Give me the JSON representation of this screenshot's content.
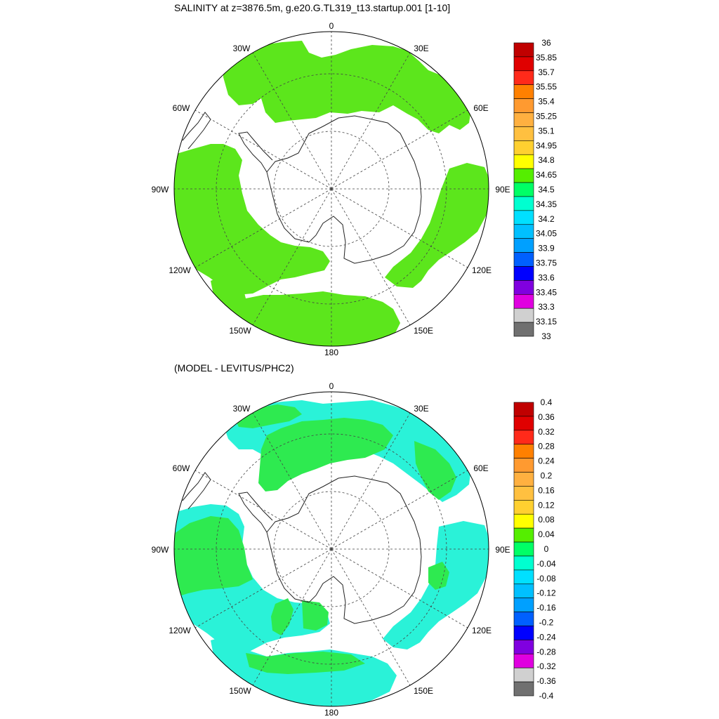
{
  "chart_data": [
    {
      "type": "polar-map",
      "title": "SALINITY at z=3876.5m, g.e20.G.TL319_t13.startup.001 [1-10]",
      "projection": "south-polar-stereographic",
      "lon_labels": [
        "0",
        "30E",
        "60E",
        "90E",
        "120E",
        "150E",
        "180",
        "150W",
        "120W",
        "90W",
        "60W",
        "30W"
      ],
      "colorbar": {
        "levels": [
          "36",
          "35.85",
          "35.7",
          "35.55",
          "35.4",
          "35.25",
          "35.1",
          "34.95",
          "34.8",
          "34.65",
          "34.5",
          "34.35",
          "34.2",
          "34.05",
          "33.9",
          "33.75",
          "33.6",
          "33.45",
          "33.3",
          "33.15",
          "33"
        ],
        "colors": [
          "#c00000",
          "#e00000",
          "#ff2a1a",
          "#ff8000",
          "#ff9a30",
          "#ffb040",
          "#ffc040",
          "#ffd030",
          "#ffff00",
          "#55ee00",
          "#00ff66",
          "#00ffd0",
          "#00e0ff",
          "#00c0ff",
          "#00a0ff",
          "#0060ff",
          "#0000ff",
          "#8000e0",
          "#e000e0",
          "#d0d0d0",
          "#707070"
        ]
      },
      "ocean_fill": "#5ce61c",
      "ocean_fill_value": "34.65–34.8"
    },
    {
      "type": "polar-map",
      "title": "(MODEL - LEVITUS/PHC2)",
      "projection": "south-polar-stereographic",
      "lon_labels": [
        "0",
        "30E",
        "60E",
        "90E",
        "120E",
        "150E",
        "180",
        "150W",
        "120W",
        "90W",
        "60W",
        "30W"
      ],
      "colorbar": {
        "levels": [
          "0.4",
          "0.36",
          "0.32",
          "0.28",
          "0.24",
          "0.2",
          "0.16",
          "0.12",
          "0.08",
          "0.04",
          "0",
          "-0.04",
          "-0.08",
          "-0.12",
          "-0.16",
          "-0.2",
          "-0.24",
          "-0.28",
          "-0.32",
          "-0.36",
          "-0.4"
        ],
        "colors": [
          "#c00000",
          "#e00000",
          "#ff2a1a",
          "#ff8000",
          "#ff9a30",
          "#ffb040",
          "#ffc040",
          "#ffd030",
          "#ffff00",
          "#55ee00",
          "#00ff66",
          "#00ffd0",
          "#00e0ff",
          "#00c0ff",
          "#00a0ff",
          "#0060ff",
          "#0000ff",
          "#8000e0",
          "#e000e0",
          "#d0d0d0",
          "#707070"
        ]
      },
      "positive_fill": "#2eea50",
      "negative_fill": "#2af2d8"
    }
  ]
}
